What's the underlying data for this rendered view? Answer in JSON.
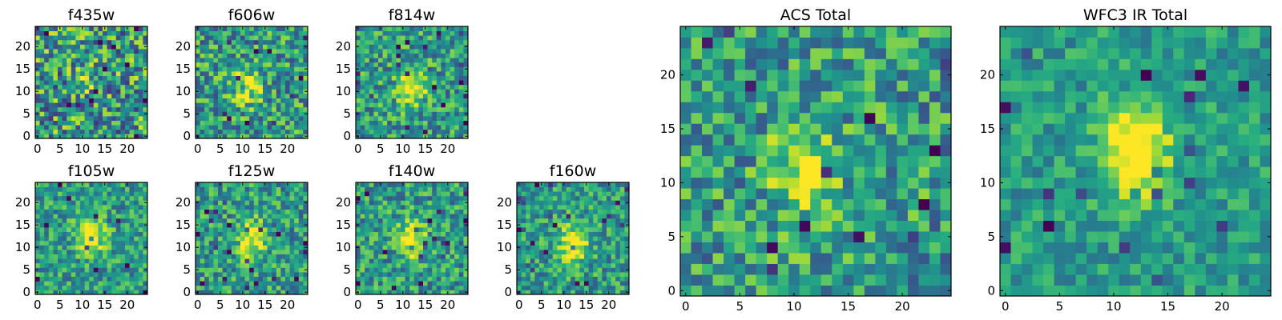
{
  "figure": {
    "description_type": "image-grid"
  },
  "chart_data": [
    {
      "type": "heatmap",
      "title": "f435w",
      "xticks": [
        "0",
        "5",
        "10",
        "15",
        "20"
      ],
      "yticks": [
        "0",
        "5",
        "10",
        "15",
        "20"
      ],
      "xlim": [
        0,
        24
      ],
      "ylim": [
        0,
        24
      ],
      "grid_size": 25,
      "colormap": "viridis",
      "source_center": [
        11,
        13
      ],
      "source_strength": 0.15,
      "noise": 0.55,
      "seed": 11
    },
    {
      "type": "heatmap",
      "title": "f606w",
      "xticks": [
        "0",
        "5",
        "10",
        "15",
        "20"
      ],
      "yticks": [
        "0",
        "5",
        "10",
        "15",
        "20"
      ],
      "xlim": [
        0,
        24
      ],
      "ylim": [
        0,
        24
      ],
      "grid_size": 25,
      "colormap": "viridis",
      "source_center": [
        11,
        11
      ],
      "source_strength": 0.45,
      "noise": 0.45,
      "seed": 23
    },
    {
      "type": "heatmap",
      "title": "f814w",
      "xticks": [
        "0",
        "5",
        "10",
        "15",
        "20"
      ],
      "yticks": [
        "0",
        "5",
        "10",
        "15",
        "20"
      ],
      "xlim": [
        0,
        24
      ],
      "ylim": [
        0,
        24
      ],
      "grid_size": 25,
      "colormap": "viridis",
      "source_center": [
        12,
        11
      ],
      "source_strength": 0.55,
      "noise": 0.4,
      "seed": 37
    },
    {
      "type": "heatmap",
      "title": "f105w",
      "xticks": [
        "0",
        "5",
        "10",
        "15",
        "20"
      ],
      "yticks": [
        "0",
        "5",
        "10",
        "15",
        "20"
      ],
      "xlim": [
        0,
        24
      ],
      "ylim": [
        0,
        24
      ],
      "grid_size": 25,
      "colormap": "viridis",
      "source_center": [
        12,
        13
      ],
      "source_strength": 0.6,
      "noise": 0.35,
      "seed": 41
    },
    {
      "type": "heatmap",
      "title": "f125w",
      "xticks": [
        "0",
        "5",
        "10",
        "15",
        "20"
      ],
      "yticks": [
        "0",
        "5",
        "10",
        "15",
        "20"
      ],
      "xlim": [
        0,
        24
      ],
      "ylim": [
        0,
        24
      ],
      "grid_size": 25,
      "colormap": "viridis",
      "source_center": [
        12,
        12
      ],
      "source_strength": 0.55,
      "noise": 0.38,
      "seed": 53
    },
    {
      "type": "heatmap",
      "title": "f140w",
      "xticks": [
        "0",
        "5",
        "10",
        "15",
        "20"
      ],
      "yticks": [
        "0",
        "5",
        "10",
        "15",
        "20"
      ],
      "xlim": [
        0,
        24
      ],
      "ylim": [
        0,
        24
      ],
      "grid_size": 25,
      "colormap": "viridis",
      "source_center": [
        12,
        12
      ],
      "source_strength": 0.55,
      "noise": 0.38,
      "seed": 67
    },
    {
      "type": "heatmap",
      "title": "f160w",
      "xticks": [
        "0",
        "5",
        "10",
        "15",
        "20"
      ],
      "yticks": [
        "0",
        "5",
        "10",
        "15",
        "20"
      ],
      "xlim": [
        0,
        24
      ],
      "ylim": [
        0,
        24
      ],
      "grid_size": 25,
      "colormap": "viridis",
      "source_center": [
        12,
        11
      ],
      "source_strength": 0.6,
      "noise": 0.35,
      "seed": 79
    },
    {
      "type": "heatmap",
      "title": "ACS Total",
      "xticks": [
        "0",
        "5",
        "10",
        "15",
        "20"
      ],
      "yticks": [
        "0",
        "5",
        "10",
        "15",
        "20"
      ],
      "xlim": [
        0,
        24
      ],
      "ylim": [
        0,
        24
      ],
      "grid_size": 25,
      "colormap": "viridis",
      "source_center": [
        11,
        11
      ],
      "source_strength": 0.5,
      "noise": 0.42,
      "seed": 97
    },
    {
      "type": "heatmap",
      "title": "WFC3 IR Total",
      "xticks": [
        "0",
        "5",
        "10",
        "15",
        "20"
      ],
      "yticks": [
        "0",
        "5",
        "10",
        "15",
        "20"
      ],
      "xlim": [
        0,
        24
      ],
      "ylim": [
        0,
        24
      ],
      "grid_size": 25,
      "colormap": "viridis",
      "source_center": [
        12,
        13
      ],
      "source_strength": 0.75,
      "noise": 0.25,
      "seed": 113
    }
  ]
}
